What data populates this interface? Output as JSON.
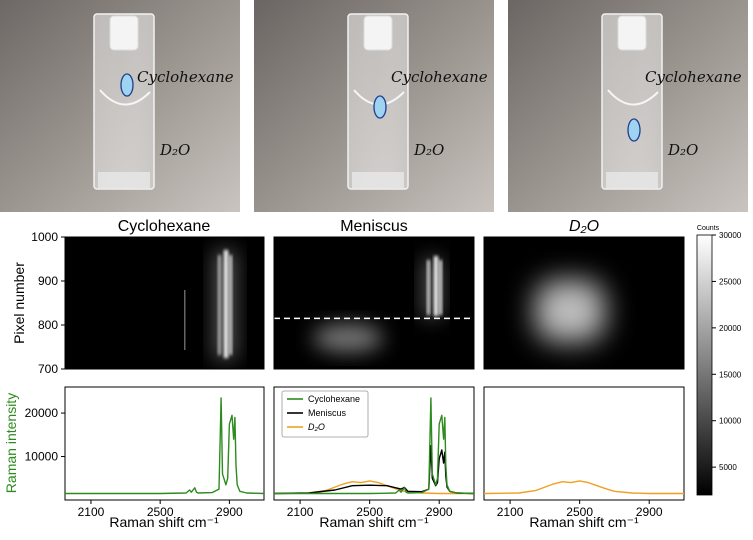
{
  "photos": [
    {
      "top_label": "Cyclohexane",
      "bottom_label": "D₂O",
      "marker_level": "top"
    },
    {
      "top_label": "Cyclohexane",
      "bottom_label": "D₂O",
      "marker_level": "meniscus"
    },
    {
      "top_label": "Cyclohexane",
      "bottom_label": "D₂O",
      "marker_level": "bottom"
    }
  ],
  "marker_color": "#9fd3f0",
  "chart_data": [
    {
      "type": "heatmap",
      "panels": [
        "Cyclohexane",
        "Meniscus",
        "D₂O"
      ],
      "ylabel": "Pixel number",
      "ylim": [
        700,
        1000
      ],
      "yticks": [
        "1000",
        "900",
        "800",
        "700"
      ],
      "meniscus_line_y": 815,
      "colorbar": {
        "label": "Counts",
        "min": 2000,
        "max": 30000,
        "ticks": [
          "30000",
          "25000",
          "20000",
          "15000",
          "10000",
          "5000"
        ],
        "tick_values": [
          30000,
          25000,
          20000,
          15000,
          10000,
          5000
        ]
      }
    },
    {
      "type": "line",
      "panels": [
        "Cyclohexane",
        "Meniscus",
        "D₂O"
      ],
      "xlabel": "Raman shift cm⁻¹",
      "ylabel": "Raman intensity",
      "xlim": [
        1950,
        3100
      ],
      "ylim": [
        0,
        26000
      ],
      "xticks": [
        "2100",
        "2500",
        "2900"
      ],
      "xtick_values": [
        2100,
        2500,
        2900
      ],
      "yticks": [
        "20000",
        "10000"
      ],
      "ytick_values": [
        20000,
        10000
      ],
      "legend": "top-left",
      "series": [
        {
          "name": "Cyclohexane",
          "color": "#2e8b1f",
          "panels": [
            0,
            1
          ],
          "x": [
            1950,
            2300,
            2500,
            2650,
            2670,
            2680,
            2700,
            2710,
            2720,
            2800,
            2840,
            2852,
            2860,
            2880,
            2890,
            2900,
            2915,
            2925,
            2932,
            2938,
            2945,
            2960,
            3000,
            3100
          ],
          "y": [
            1500,
            1500,
            1500,
            1600,
            2300,
            1800,
            2800,
            1800,
            1600,
            1700,
            2500,
            23500,
            6000,
            3500,
            5000,
            17500,
            19500,
            14000,
            19000,
            8000,
            3500,
            2000,
            1600,
            1500
          ]
        },
        {
          "name": "Meniscus",
          "color": "#000000",
          "panels": [
            1
          ],
          "x": [
            1950,
            2150,
            2300,
            2400,
            2500,
            2600,
            2680,
            2700,
            2720,
            2800,
            2840,
            2852,
            2860,
            2880,
            2890,
            2900,
            2915,
            2925,
            2932,
            2938,
            2945,
            2960,
            3000,
            3100
          ],
          "y": [
            1500,
            1600,
            2300,
            3300,
            3400,
            3300,
            2500,
            2900,
            2000,
            1900,
            2500,
            12500,
            5000,
            3300,
            4000,
            9500,
            11500,
            8500,
            11000,
            5500,
            3000,
            2000,
            1600,
            1500
          ]
        },
        {
          "name": "D₂O",
          "color": "#f0a020",
          "panels": [
            1,
            2
          ],
          "x": [
            1950,
            2150,
            2250,
            2350,
            2400,
            2450,
            2500,
            2550,
            2600,
            2650,
            2700,
            2800,
            2900,
            3100
          ],
          "y": [
            1500,
            1600,
            2200,
            3700,
            4200,
            4000,
            4400,
            4000,
            3300,
            2600,
            2000,
            1600,
            1500,
            1500
          ]
        }
      ]
    }
  ]
}
